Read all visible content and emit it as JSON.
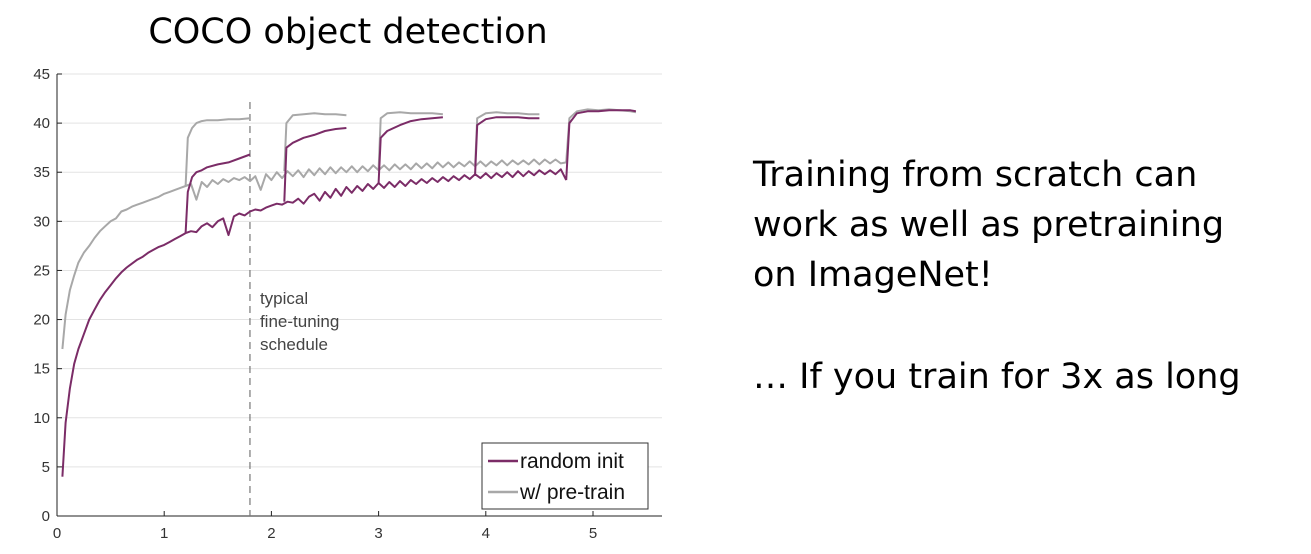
{
  "chart_data": {
    "type": "line",
    "title": "COCO object detection",
    "xlabel": "",
    "ylabel": "",
    "xlim": [
      0,
      5.6
    ],
    "ylim": [
      0,
      45
    ],
    "xticks": [
      0,
      1,
      2,
      3,
      4,
      5
    ],
    "yticks": [
      0,
      5,
      10,
      15,
      20,
      25,
      30,
      35,
      40,
      45
    ],
    "grid": true,
    "legend_position": "bottom-right",
    "annotation": {
      "x": 1.8,
      "lines": [
        "typical",
        "fine-tuning",
        "schedule"
      ]
    },
    "series": [
      {
        "name": "random init",
        "color": "#7b2c67",
        "segments": [
          [
            [
              0.05,
              4
            ],
            [
              0.08,
              9.5
            ],
            [
              0.12,
              13
            ],
            [
              0.16,
              15.5
            ],
            [
              0.2,
              17
            ],
            [
              0.25,
              18.5
            ],
            [
              0.3,
              20
            ],
            [
              0.35,
              21
            ],
            [
              0.4,
              22
            ],
            [
              0.45,
              22.8
            ],
            [
              0.5,
              23.5
            ],
            [
              0.55,
              24.2
            ],
            [
              0.6,
              24.8
            ],
            [
              0.65,
              25.3
            ],
            [
              0.7,
              25.7
            ],
            [
              0.75,
              26.1
            ],
            [
              0.8,
              26.4
            ],
            [
              0.85,
              26.8
            ],
            [
              0.9,
              27.1
            ],
            [
              0.95,
              27.4
            ],
            [
              1.0,
              27.6
            ],
            [
              1.05,
              27.9
            ],
            [
              1.1,
              28.2
            ],
            [
              1.15,
              28.5
            ],
            [
              1.2,
              28.8
            ],
            [
              1.25,
              29
            ],
            [
              1.3,
              28.9
            ],
            [
              1.35,
              29.5
            ],
            [
              1.4,
              29.8
            ],
            [
              1.45,
              29.4
            ],
            [
              1.5,
              30
            ],
            [
              1.55,
              30.3
            ],
            [
              1.6,
              28.6
            ],
            [
              1.65,
              30.5
            ],
            [
              1.7,
              30.8
            ],
            [
              1.75,
              30.6
            ],
            [
              1.8,
              31
            ],
            [
              1.85,
              31.2
            ],
            [
              1.9,
              31.1
            ],
            [
              1.95,
              31.4
            ],
            [
              2.0,
              31.6
            ],
            [
              2.05,
              31.8
            ],
            [
              2.1,
              31.7
            ],
            [
              2.15,
              32
            ],
            [
              2.2,
              31.9
            ],
            [
              2.25,
              32.3
            ],
            [
              2.3,
              31.8
            ],
            [
              2.35,
              32.5
            ],
            [
              2.4,
              32.8
            ],
            [
              2.45,
              32.1
            ],
            [
              2.5,
              33
            ],
            [
              2.55,
              32.4
            ],
            [
              2.6,
              33.3
            ],
            [
              2.65,
              32.6
            ],
            [
              2.7,
              33.5
            ],
            [
              2.75,
              32.9
            ],
            [
              2.8,
              33.6
            ],
            [
              2.85,
              33.1
            ],
            [
              2.9,
              33.8
            ],
            [
              2.95,
              33.3
            ],
            [
              3.0,
              33.9
            ],
            [
              3.05,
              33.4
            ],
            [
              3.1,
              34
            ],
            [
              3.15,
              33.5
            ],
            [
              3.2,
              34.1
            ],
            [
              3.25,
              33.6
            ],
            [
              3.3,
              34.2
            ],
            [
              3.35,
              33.8
            ],
            [
              3.4,
              34.3
            ],
            [
              3.45,
              33.9
            ],
            [
              3.5,
              34.4
            ],
            [
              3.55,
              34
            ],
            [
              3.6,
              34.5
            ],
            [
              3.65,
              34.1
            ],
            [
              3.7,
              34.6
            ],
            [
              3.75,
              34.2
            ],
            [
              3.8,
              34.7
            ],
            [
              3.85,
              34.3
            ],
            [
              3.9,
              34.8
            ],
            [
              3.95,
              34.4
            ],
            [
              4.0,
              34.9
            ],
            [
              4.05,
              34.4
            ],
            [
              4.1,
              34.9
            ],
            [
              4.15,
              34.5
            ],
            [
              4.2,
              35
            ],
            [
              4.25,
              34.5
            ],
            [
              4.3,
              35.1
            ],
            [
              4.35,
              34.6
            ],
            [
              4.4,
              35.1
            ],
            [
              4.45,
              34.7
            ],
            [
              4.5,
              35.2
            ],
            [
              4.55,
              34.8
            ],
            [
              4.6,
              35.2
            ],
            [
              4.65,
              34.8
            ],
            [
              4.7,
              35.3
            ],
            [
              4.75,
              34.2
            ]
          ],
          [
            [
              1.2,
              28.8
            ],
            [
              1.22,
              33
            ],
            [
              1.26,
              34.5
            ],
            [
              1.3,
              35
            ],
            [
              1.35,
              35.2
            ],
            [
              1.4,
              35.5
            ],
            [
              1.5,
              35.8
            ],
            [
              1.6,
              36
            ],
            [
              1.7,
              36.4
            ],
            [
              1.8,
              36.8
            ]
          ],
          [
            [
              2.12,
              32
            ],
            [
              2.14,
              37.5
            ],
            [
              2.2,
              38
            ],
            [
              2.3,
              38.5
            ],
            [
              2.4,
              38.8
            ],
            [
              2.5,
              39.2
            ],
            [
              2.6,
              39.4
            ],
            [
              2.7,
              39.5
            ]
          ],
          [
            [
              3.0,
              33.9
            ],
            [
              3.02,
              38.5
            ],
            [
              3.08,
              39.2
            ],
            [
              3.2,
              39.8
            ],
            [
              3.3,
              40.2
            ],
            [
              3.4,
              40.4
            ],
            [
              3.5,
              40.5
            ],
            [
              3.6,
              40.6
            ]
          ],
          [
            [
              3.9,
              34.8
            ],
            [
              3.92,
              39.8
            ],
            [
              4.0,
              40.4
            ],
            [
              4.1,
              40.6
            ],
            [
              4.2,
              40.6
            ],
            [
              4.3,
              40.6
            ],
            [
              4.4,
              40.5
            ],
            [
              4.5,
              40.5
            ]
          ],
          [
            [
              4.75,
              34.2
            ],
            [
              4.78,
              40
            ],
            [
              4.85,
              41
            ],
            [
              4.95,
              41.2
            ],
            [
              5.05,
              41.2
            ],
            [
              5.15,
              41.3
            ],
            [
              5.25,
              41.3
            ],
            [
              5.35,
              41.3
            ],
            [
              5.4,
              41.2
            ]
          ]
        ]
      },
      {
        "name": "w/ pre-train",
        "color": "#a8a8a8",
        "segments": [
          [
            [
              0.05,
              17
            ],
            [
              0.08,
              20.5
            ],
            [
              0.12,
              23
            ],
            [
              0.16,
              24.5
            ],
            [
              0.2,
              25.8
            ],
            [
              0.25,
              26.8
            ],
            [
              0.3,
              27.5
            ],
            [
              0.35,
              28.3
            ],
            [
              0.4,
              29
            ],
            [
              0.45,
              29.5
            ],
            [
              0.5,
              30
            ],
            [
              0.55,
              30.3
            ],
            [
              0.6,
              31
            ],
            [
              0.65,
              31.2
            ],
            [
              0.7,
              31.5
            ],
            [
              0.75,
              31.7
            ],
            [
              0.8,
              31.9
            ],
            [
              0.85,
              32.1
            ],
            [
              0.9,
              32.3
            ],
            [
              0.95,
              32.5
            ],
            [
              1.0,
              32.8
            ],
            [
              1.05,
              33
            ],
            [
              1.1,
              33.2
            ],
            [
              1.15,
              33.4
            ],
            [
              1.2,
              33.6
            ],
            [
              1.25,
              33.8
            ],
            [
              1.3,
              32.2
            ],
            [
              1.35,
              34
            ],
            [
              1.4,
              33.5
            ],
            [
              1.45,
              34.2
            ],
            [
              1.5,
              33.8
            ],
            [
              1.55,
              34.3
            ],
            [
              1.6,
              34
            ],
            [
              1.65,
              34.4
            ],
            [
              1.7,
              34.2
            ],
            [
              1.75,
              34.5
            ],
            [
              1.8,
              34.1
            ],
            [
              1.85,
              34.6
            ],
            [
              1.9,
              33.2
            ],
            [
              1.95,
              34.8
            ],
            [
              2.0,
              34.2
            ],
            [
              2.05,
              35
            ],
            [
              2.1,
              34.4
            ],
            [
              2.15,
              35.1
            ],
            [
              2.2,
              34.6
            ],
            [
              2.25,
              35.2
            ],
            [
              2.3,
              34.5
            ],
            [
              2.35,
              35.3
            ],
            [
              2.4,
              34.7
            ],
            [
              2.45,
              35.4
            ],
            [
              2.5,
              34.8
            ],
            [
              2.55,
              35.5
            ],
            [
              2.6,
              34.9
            ],
            [
              2.65,
              35.5
            ],
            [
              2.7,
              35
            ],
            [
              2.75,
              35.6
            ],
            [
              2.8,
              35
            ],
            [
              2.85,
              35.6
            ],
            [
              2.9,
              35.1
            ],
            [
              2.95,
              35.7
            ],
            [
              3.0,
              35.2
            ],
            [
              3.05,
              35.7
            ],
            [
              3.1,
              35.2
            ],
            [
              3.15,
              35.8
            ],
            [
              3.2,
              35.3
            ],
            [
              3.25,
              35.8
            ],
            [
              3.3,
              35.3
            ],
            [
              3.35,
              35.9
            ],
            [
              3.4,
              35.4
            ],
            [
              3.45,
              35.9
            ],
            [
              3.5,
              35.4
            ],
            [
              3.55,
              36
            ],
            [
              3.6,
              35.5
            ],
            [
              3.65,
              36
            ],
            [
              3.7,
              35.5
            ],
            [
              3.75,
              36
            ],
            [
              3.8,
              35.6
            ],
            [
              3.85,
              36.1
            ],
            [
              3.9,
              35.6
            ],
            [
              3.95,
              36.1
            ],
            [
              4.0,
              35.6
            ],
            [
              4.05,
              36.1
            ],
            [
              4.1,
              35.7
            ],
            [
              4.15,
              36.2
            ],
            [
              4.2,
              35.7
            ],
            [
              4.25,
              36.2
            ],
            [
              4.3,
              35.8
            ],
            [
              4.35,
              36.2
            ],
            [
              4.4,
              35.8
            ],
            [
              4.45,
              36.3
            ],
            [
              4.5,
              35.8
            ],
            [
              4.55,
              36.3
            ],
            [
              4.6,
              35.9
            ],
            [
              4.65,
              36.3
            ],
            [
              4.7,
              35.9
            ],
            [
              4.75,
              36
            ]
          ],
          [
            [
              1.2,
              33.6
            ],
            [
              1.22,
              38.5
            ],
            [
              1.26,
              39.5
            ],
            [
              1.3,
              40
            ],
            [
              1.35,
              40.2
            ],
            [
              1.4,
              40.3
            ],
            [
              1.5,
              40.3
            ],
            [
              1.6,
              40.4
            ],
            [
              1.7,
              40.4
            ],
            [
              1.8,
              40.5
            ]
          ],
          [
            [
              2.12,
              35.1
            ],
            [
              2.14,
              40
            ],
            [
              2.2,
              40.8
            ],
            [
              2.3,
              40.9
            ],
            [
              2.4,
              41
            ],
            [
              2.5,
              40.9
            ],
            [
              2.6,
              40.9
            ],
            [
              2.7,
              40.8
            ]
          ],
          [
            [
              3.0,
              35.2
            ],
            [
              3.02,
              40.5
            ],
            [
              3.08,
              41
            ],
            [
              3.2,
              41.1
            ],
            [
              3.3,
              41
            ],
            [
              3.4,
              41
            ],
            [
              3.5,
              41
            ],
            [
              3.6,
              40.9
            ]
          ],
          [
            [
              3.9,
              35.6
            ],
            [
              3.92,
              40.5
            ],
            [
              4.0,
              41
            ],
            [
              4.1,
              41.1
            ],
            [
              4.2,
              41
            ],
            [
              4.3,
              41
            ],
            [
              4.4,
              40.9
            ],
            [
              4.5,
              40.9
            ]
          ],
          [
            [
              4.75,
              36
            ],
            [
              4.78,
              40.5
            ],
            [
              4.85,
              41.2
            ],
            [
              4.95,
              41.4
            ],
            [
              5.05,
              41.3
            ],
            [
              5.15,
              41.4
            ],
            [
              5.25,
              41.3
            ],
            [
              5.35,
              41.2
            ],
            [
              5.4,
              41.1
            ]
          ]
        ]
      }
    ]
  },
  "caption": {
    "lines": [
      "Training from scratch can",
      "work as well as pretraining",
      "on ImageNet!"
    ],
    "note": "… If you train for 3x as long"
  }
}
